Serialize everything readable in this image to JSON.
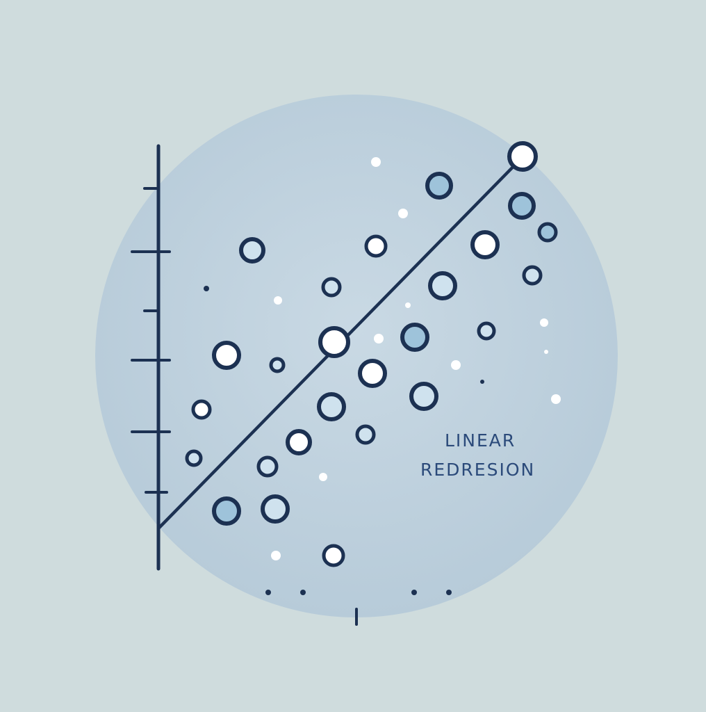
{
  "caption": {
    "line1": "LINEAR",
    "line2": "REDRESION"
  },
  "colors": {
    "background": "#cfdcdd",
    "disc": "#bccfdc",
    "ink": "#1c3152",
    "marker_fill": "#ffffff"
  }
}
